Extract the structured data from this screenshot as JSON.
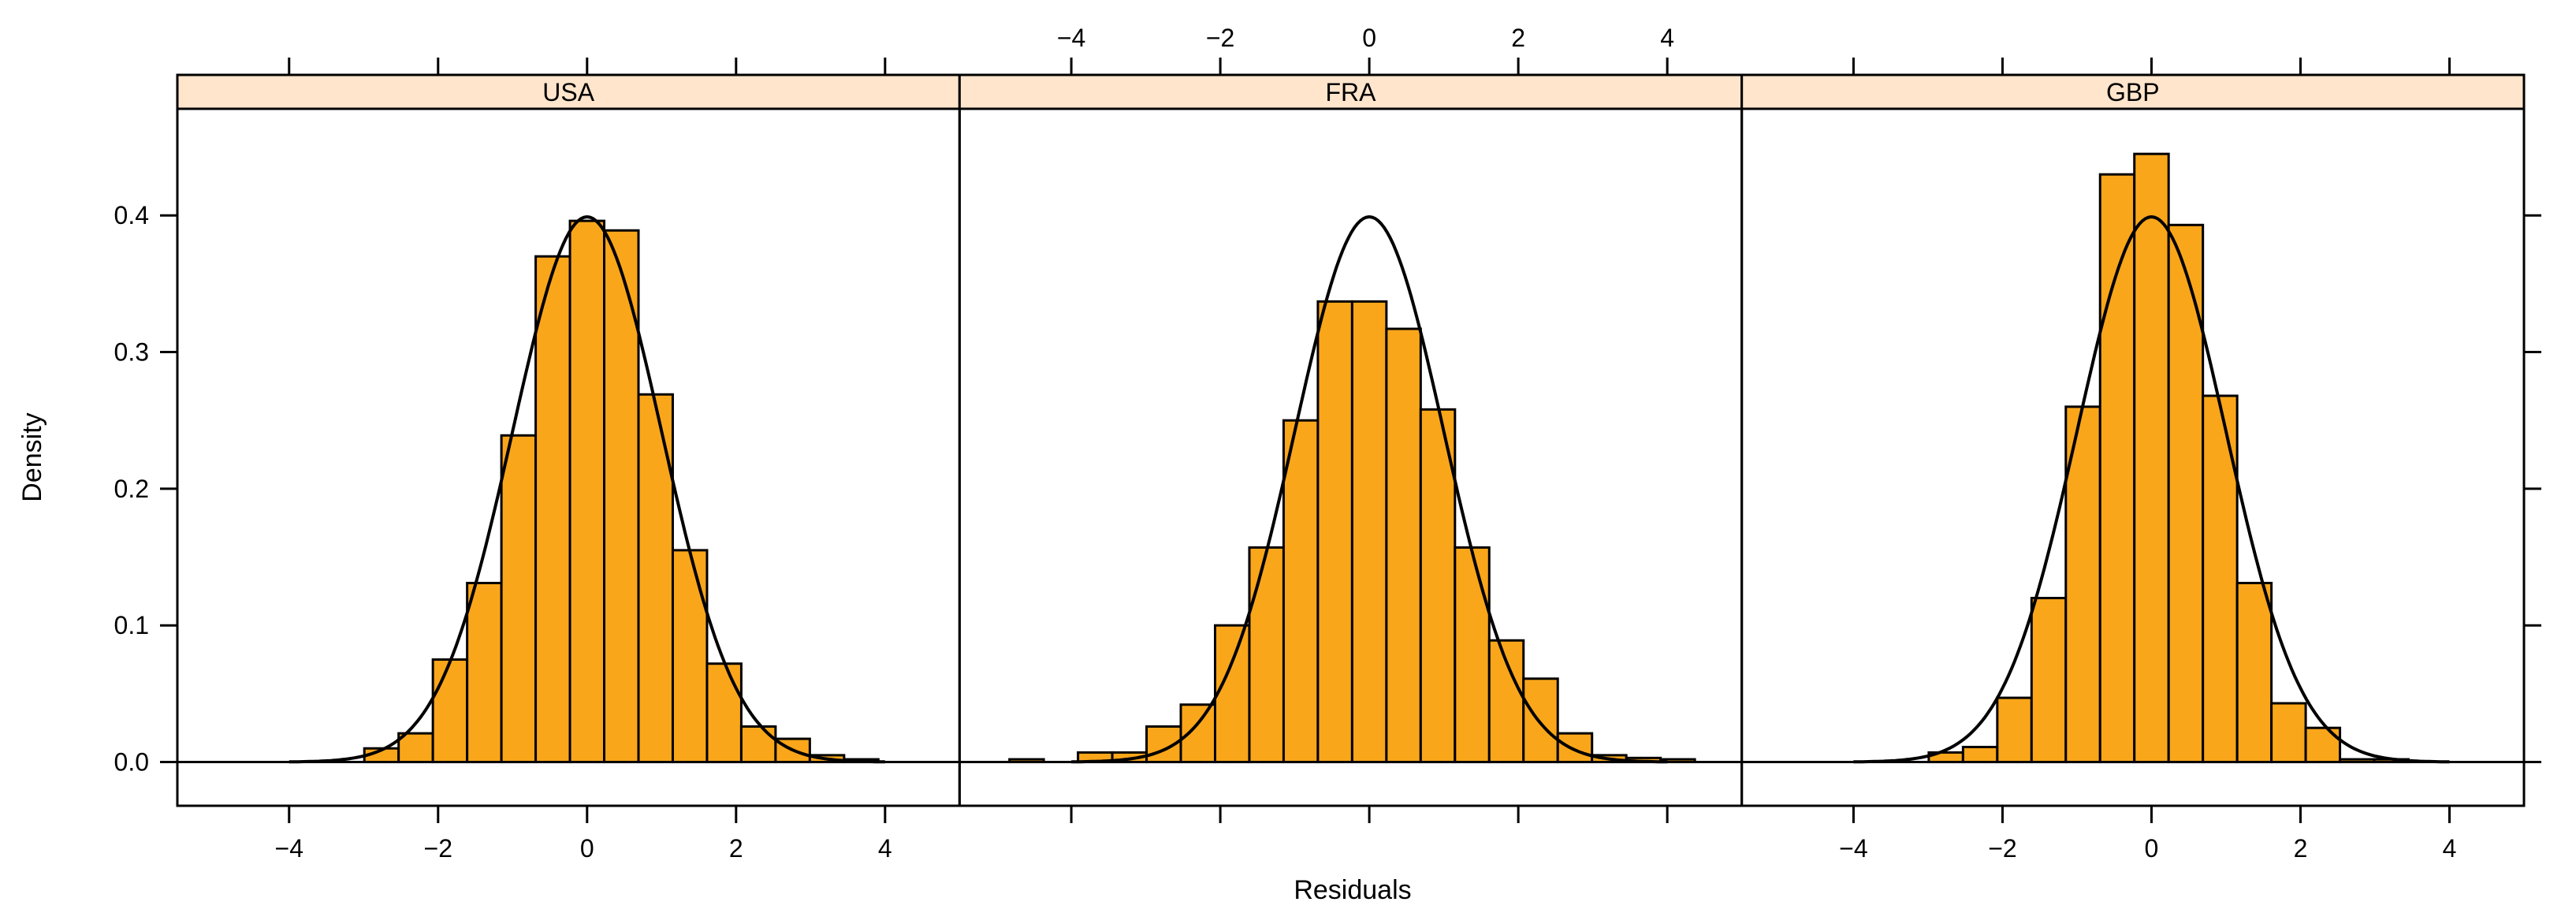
{
  "colors": {
    "bar_fill": "#FAA61A",
    "bar_stroke": "#000000",
    "strip_fill": "#FFE5CC",
    "curve": "#000000"
  },
  "chart_data": {
    "type": "bar",
    "layout": "three panels in one row",
    "xlabel": "Residuals",
    "ylabel": "Density",
    "xlim": [
      -5.5,
      5
    ],
    "ylim": [
      -0.032,
      0.478
    ],
    "x_ticks": [
      -4,
      -2,
      0,
      2,
      4
    ],
    "y_ticks": [
      0.0,
      0.1,
      0.2,
      0.3,
      0.4
    ],
    "y_tick_labels": [
      "0.0",
      "0.1",
      "0.2",
      "0.3",
      "0.4"
    ],
    "x_tick_labels": [
      "−4",
      "−2",
      "0",
      "2",
      "4"
    ],
    "bin_width": 0.46,
    "overlay": "standard normal density curve",
    "panels": [
      {
        "name": "USA",
        "bins": [
          {
            "x0": -2.99,
            "x1": -2.53,
            "density": 0.01
          },
          {
            "x0": -2.53,
            "x1": -2.07,
            "density": 0.021
          },
          {
            "x0": -2.07,
            "x1": -1.61,
            "density": 0.075
          },
          {
            "x0": -1.61,
            "x1": -1.15,
            "density": 0.131
          },
          {
            "x0": -1.15,
            "x1": -0.69,
            "density": 0.239
          },
          {
            "x0": -0.69,
            "x1": -0.23,
            "density": 0.37
          },
          {
            "x0": -0.23,
            "x1": 0.23,
            "density": 0.396
          },
          {
            "x0": 0.23,
            "x1": 0.69,
            "density": 0.389
          },
          {
            "x0": 0.69,
            "x1": 1.15,
            "density": 0.269
          },
          {
            "x0": 1.15,
            "x1": 1.61,
            "density": 0.155
          },
          {
            "x0": 1.61,
            "x1": 2.07,
            "density": 0.072
          },
          {
            "x0": 2.07,
            "x1": 2.53,
            "density": 0.026
          },
          {
            "x0": 2.53,
            "x1": 2.99,
            "density": 0.017
          },
          {
            "x0": 2.99,
            "x1": 3.45,
            "density": 0.005
          },
          {
            "x0": 3.45,
            "x1": 3.91,
            "density": 0.002
          }
        ]
      },
      {
        "name": "FRA",
        "bins": [
          {
            "x0": -4.83,
            "x1": -4.37,
            "density": 0.002
          },
          {
            "x0": -3.91,
            "x1": -3.45,
            "density": 0.007
          },
          {
            "x0": -3.45,
            "x1": -2.99,
            "density": 0.007
          },
          {
            "x0": -2.99,
            "x1": -2.53,
            "density": 0.026
          },
          {
            "x0": -2.53,
            "x1": -2.07,
            "density": 0.042
          },
          {
            "x0": -2.07,
            "x1": -1.61,
            "density": 0.1
          },
          {
            "x0": -1.61,
            "x1": -1.15,
            "density": 0.157
          },
          {
            "x0": -1.15,
            "x1": -0.69,
            "density": 0.25
          },
          {
            "x0": -0.69,
            "x1": -0.23,
            "density": 0.337
          },
          {
            "x0": -0.23,
            "x1": 0.23,
            "density": 0.337
          },
          {
            "x0": 0.23,
            "x1": 0.69,
            "density": 0.317
          },
          {
            "x0": 0.69,
            "x1": 1.15,
            "density": 0.258
          },
          {
            "x0": 1.15,
            "x1": 1.61,
            "density": 0.157
          },
          {
            "x0": 1.61,
            "x1": 2.07,
            "density": 0.089
          },
          {
            "x0": 2.07,
            "x1": 2.53,
            "density": 0.061
          },
          {
            "x0": 2.53,
            "x1": 2.99,
            "density": 0.021
          },
          {
            "x0": 2.99,
            "x1": 3.45,
            "density": 0.005
          },
          {
            "x0": 3.45,
            "x1": 3.91,
            "density": 0.003
          },
          {
            "x0": 3.91,
            "x1": 4.37,
            "density": 0.002
          }
        ]
      },
      {
        "name": "GBP",
        "bins": [
          {
            "x0": -2.99,
            "x1": -2.53,
            "density": 0.007
          },
          {
            "x0": -2.53,
            "x1": -2.07,
            "density": 0.011
          },
          {
            "x0": -2.07,
            "x1": -1.61,
            "density": 0.047
          },
          {
            "x0": -1.61,
            "x1": -1.15,
            "density": 0.12
          },
          {
            "x0": -1.15,
            "x1": -0.69,
            "density": 0.26
          },
          {
            "x0": -0.69,
            "x1": -0.23,
            "density": 0.43
          },
          {
            "x0": -0.23,
            "x1": 0.23,
            "density": 0.445
          },
          {
            "x0": 0.23,
            "x1": 0.69,
            "density": 0.393
          },
          {
            "x0": 0.69,
            "x1": 1.15,
            "density": 0.268
          },
          {
            "x0": 1.15,
            "x1": 1.61,
            "density": 0.131
          },
          {
            "x0": 1.61,
            "x1": 2.07,
            "density": 0.043
          },
          {
            "x0": 2.07,
            "x1": 2.53,
            "density": 0.025
          },
          {
            "x0": 2.53,
            "x1": 2.99,
            "density": 0.002
          },
          {
            "x0": 2.99,
            "x1": 3.45,
            "density": 0.002
          }
        ]
      }
    ]
  }
}
